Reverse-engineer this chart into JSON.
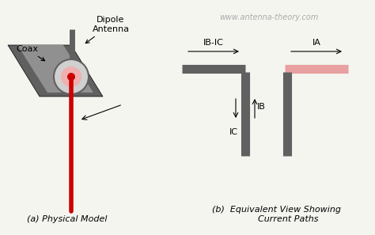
{
  "bg_color": "#f5f5f0",
  "title_text": "www.antenna-theory.com",
  "title_color": "#aaaaaa",
  "label_a": "(a) Physical Model",
  "label_b": "(b)  Equivalent View Showing\n        Current Paths",
  "coax_label": "Coax",
  "dipole_label": "Dipole\nAntenna",
  "gray_dark": "#606060",
  "gray_light": "#aaaaaa",
  "gray_mid": "#888888",
  "red_color": "#cc0000",
  "pink_color": "#e8a0a0",
  "label_IB_IC": "IB-IC",
  "label_IA": "IA",
  "label_IB": "IB",
  "label_IC": "IC"
}
